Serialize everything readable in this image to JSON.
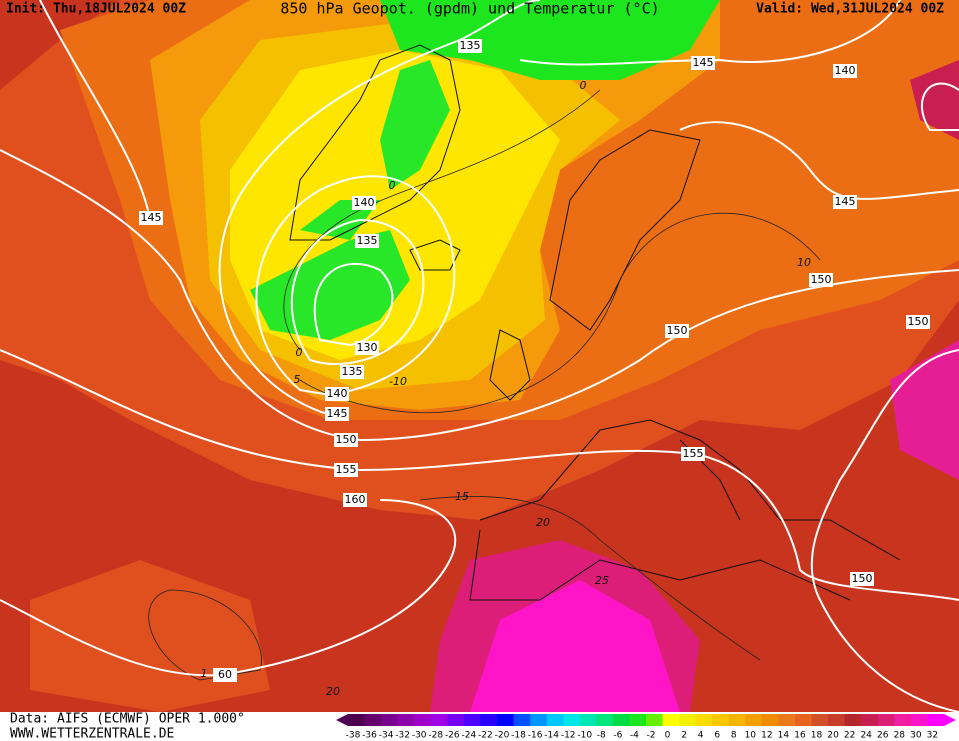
{
  "header": {
    "init": "Init: Thu,18JUL2024 00Z",
    "title": "850 hPa Geopot. (gpdm) und Temperatur (°C)",
    "valid": "Valid: Wed,31JUL2024 00Z"
  },
  "map": {
    "geopotential_labels": [
      "135",
      "145",
      "140",
      "140",
      "135",
      "145",
      "145",
      "150",
      "150",
      "150",
      "130",
      "135",
      "140",
      "145",
      "150",
      "155",
      "155",
      "160",
      "150",
      "60"
    ],
    "temperature_labels": [
      "0",
      "0",
      "0",
      "5",
      "-10",
      "10",
      "15",
      "20",
      "25",
      "20",
      "1"
    ]
  },
  "footer": {
    "data": "Data: AIFS (ECMWF) OPER 1.000°",
    "site": "WWW.WETTERZENTRALE.DE"
  },
  "colorbar": {
    "labels": [
      -38,
      -36,
      -34,
      -32,
      -30,
      -28,
      -26,
      -24,
      -22,
      -20,
      -18,
      -16,
      -14,
      -12,
      -10,
      -8,
      -6,
      -4,
      -2,
      0,
      2,
      4,
      6,
      8,
      10,
      12,
      14,
      16,
      18,
      20,
      22,
      24,
      26,
      28,
      30,
      32
    ],
    "colors": [
      "#500050",
      "#64006e",
      "#78008c",
      "#8c00aa",
      "#a000c8",
      "#a000e6",
      "#7800f0",
      "#5000ff",
      "#2800ff",
      "#0000ff",
      "#0050ff",
      "#0096ff",
      "#00c8ff",
      "#00e6e6",
      "#00e6b4",
      "#00e67d",
      "#00dc46",
      "#1ee61e",
      "#64f000",
      "#ffff00",
      "#f0f000",
      "#ffdc00",
      "#ffc800",
      "#f5b400",
      "#f0a000",
      "#f08c00",
      "#eb781e",
      "#e6641e",
      "#d25028",
      "#c83c28",
      "#b4282d",
      "#c81e50",
      "#dc1e78",
      "#f01ea0",
      "#ff14c8",
      "#ff00ff"
    ]
  }
}
